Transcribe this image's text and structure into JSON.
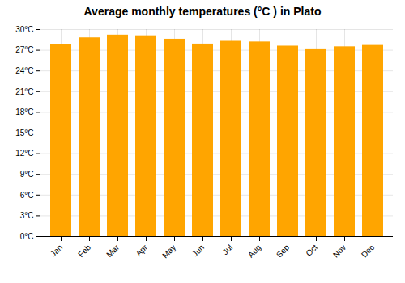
{
  "chart_data": {
    "type": "bar",
    "title": "Average monthly temperatures (°C ) in Plato",
    "categories": [
      "Jan",
      "Feb",
      "Mar",
      "Apr",
      "May",
      "Jun",
      "Jul",
      "Aug",
      "Sep",
      "Oct",
      "Nov",
      "Dec"
    ],
    "values": [
      27.8,
      28.8,
      29.2,
      29.1,
      28.6,
      27.9,
      28.3,
      28.2,
      27.6,
      27.2,
      27.5,
      27.7
    ],
    "color": "#FFA500",
    "ylim": [
      0,
      30
    ],
    "yticks": [
      {
        "value": 0,
        "label": "0°C"
      },
      {
        "value": 3,
        "label": "3°C"
      },
      {
        "value": 6,
        "label": "6°C"
      },
      {
        "value": 9,
        "label": "9°C"
      },
      {
        "value": 12,
        "label": "12°C"
      },
      {
        "value": 15,
        "label": "15°C"
      },
      {
        "value": 18,
        "label": "18°C"
      },
      {
        "value": 21,
        "label": "21°C"
      },
      {
        "value": 24,
        "label": "24°C"
      },
      {
        "value": 27,
        "label": "27°C"
      },
      {
        "value": 30,
        "label": "30°C"
      }
    ],
    "grid": true
  }
}
